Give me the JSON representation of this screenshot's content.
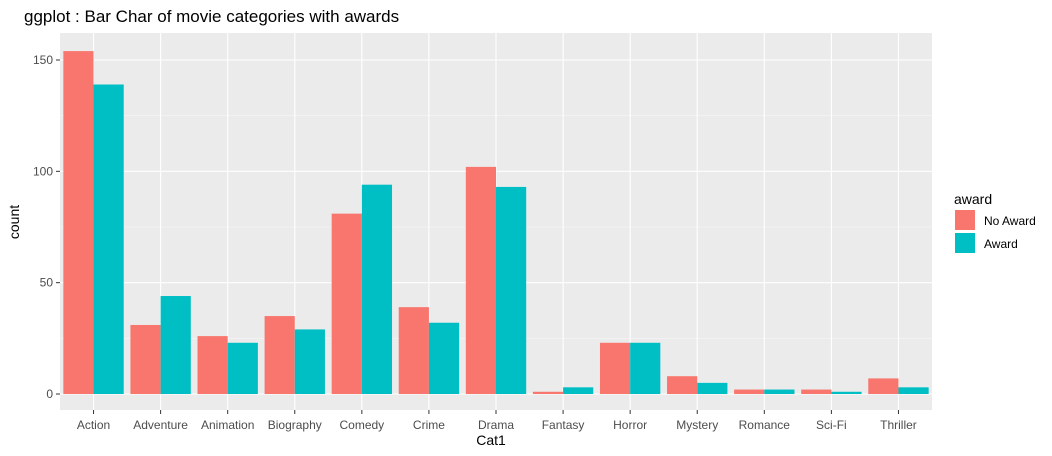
{
  "chart_data": {
    "type": "bar",
    "title": "ggplot : Bar Char of movie categories with awards",
    "xlabel": "Cat1",
    "ylabel": "count",
    "categories": [
      "Action",
      "Adventure",
      "Animation",
      "Biography",
      "Comedy",
      "Crime",
      "Drama",
      "Fantasy",
      "Horror",
      "Mystery",
      "Romance",
      "Sci-Fi",
      "Thriller"
    ],
    "series": [
      {
        "name": "No Award",
        "color": "#F8766D",
        "values": [
          154,
          31,
          26,
          35,
          81,
          39,
          102,
          1,
          23,
          8,
          2,
          2,
          7
        ]
      },
      {
        "name": "Award",
        "color": "#00BFC4",
        "values": [
          139,
          44,
          23,
          29,
          94,
          32,
          93,
          3,
          23,
          5,
          2,
          1,
          3
        ]
      }
    ],
    "ylim": [
      0,
      160
    ],
    "yticks": [
      0,
      50,
      100,
      150
    ],
    "grid": true,
    "panel_background": "#EBEBEB",
    "legend": {
      "title": "award",
      "position": "right"
    }
  }
}
